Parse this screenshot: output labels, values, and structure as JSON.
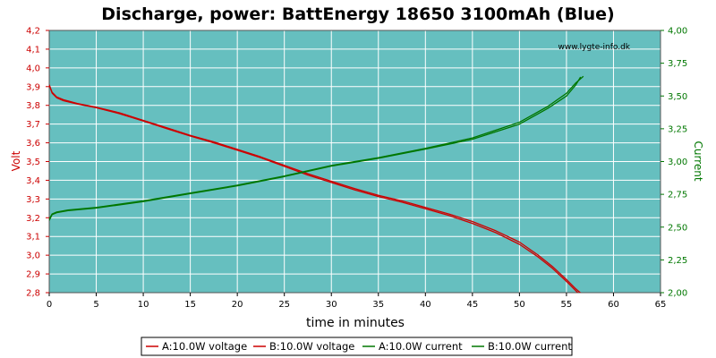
{
  "chart_data": {
    "type": "line",
    "title": "Discharge, power: BattEnergy 18650 3100mAh (Blue)",
    "xlabel": "time in minutes",
    "ylabel_left": "Volt",
    "ylabel_right": "Current",
    "watermark": "www.lygte-info.dk",
    "xlim": [
      0,
      65
    ],
    "ylim_left": [
      2.8,
      4.2
    ],
    "ylim_right": [
      2.0,
      4.0
    ],
    "x_ticks": [
      "0",
      "5",
      "10",
      "15",
      "20",
      "25",
      "30",
      "35",
      "40",
      "45",
      "50",
      "55",
      "60",
      "65"
    ],
    "y_left_ticks": [
      "2,8",
      "2,9",
      "3,0",
      "3,1",
      "3,2",
      "3,3",
      "3,4",
      "3,5",
      "3,6",
      "3,7",
      "3,8",
      "3,9",
      "4,0",
      "4,1",
      "4,2"
    ],
    "y_right_ticks": [
      "2,00",
      "2,25",
      "2,50",
      "2,75",
      "3,00",
      "3,25",
      "3,50",
      "3,75",
      "4,00"
    ],
    "grid": true,
    "legend_position": "bottom",
    "colors": {
      "plot_bg": "#66bfbf",
      "grid": "#ffffff",
      "voltage": "#cc0000",
      "current": "#007700",
      "left_axis": "#cc0000",
      "right_axis": "#007700"
    },
    "series": [
      {
        "name": "A:10.0W voltage",
        "axis": "left",
        "color": "#cc0000",
        "x": [
          0,
          0.3,
          0.8,
          1.5,
          3,
          5,
          7.5,
          10,
          12.5,
          15,
          17.5,
          20,
          22.5,
          25,
          27.5,
          30,
          32.5,
          35,
          37.5,
          40,
          42.5,
          45,
          47.5,
          50,
          52,
          53.5,
          55,
          56,
          56.8
        ],
        "y": [
          3.91,
          3.87,
          3.845,
          3.83,
          3.81,
          3.79,
          3.76,
          3.72,
          3.68,
          3.64,
          3.605,
          3.565,
          3.525,
          3.48,
          3.435,
          3.395,
          3.355,
          3.32,
          3.29,
          3.255,
          3.22,
          3.18,
          3.13,
          3.07,
          3.0,
          2.94,
          2.87,
          2.82,
          2.785
        ]
      },
      {
        "name": "B:10.0W voltage",
        "axis": "left",
        "color": "#cc0000",
        "x": [
          0,
          0.3,
          0.8,
          1.5,
          3,
          5,
          7.5,
          10,
          12.5,
          15,
          17.5,
          20,
          22.5,
          25,
          27.5,
          30,
          32.5,
          35,
          37.5,
          40,
          42.5,
          45,
          47.5,
          50,
          52,
          53.5,
          55,
          56,
          56.5
        ],
        "y": [
          3.91,
          3.865,
          3.84,
          3.825,
          3.807,
          3.787,
          3.755,
          3.716,
          3.676,
          3.636,
          3.6,
          3.56,
          3.52,
          3.474,
          3.428,
          3.388,
          3.348,
          3.313,
          3.283,
          3.248,
          3.212,
          3.17,
          3.12,
          3.058,
          2.99,
          2.93,
          2.86,
          2.81,
          2.785
        ]
      },
      {
        "name": "A:10.0W current",
        "axis": "right",
        "color": "#007700",
        "x": [
          0,
          0.3,
          0.8,
          2,
          5,
          10,
          15,
          20,
          25,
          30,
          35,
          40,
          45,
          50,
          53,
          55,
          56,
          56.8
        ],
        "y": [
          2.56,
          2.6,
          2.615,
          2.63,
          2.65,
          2.7,
          2.76,
          2.82,
          2.89,
          2.97,
          3.03,
          3.1,
          3.18,
          3.3,
          3.42,
          3.52,
          3.6,
          3.65
        ]
      },
      {
        "name": "B:10.0W current",
        "axis": "right",
        "color": "#007700",
        "x": [
          0,
          0.3,
          0.8,
          2,
          5,
          10,
          15,
          20,
          25,
          30,
          35,
          40,
          45,
          50,
          53,
          55,
          56,
          56.5
        ],
        "y": [
          2.55,
          2.595,
          2.61,
          2.625,
          2.645,
          2.695,
          2.755,
          2.815,
          2.885,
          2.965,
          3.025,
          3.095,
          3.17,
          3.285,
          3.405,
          3.5,
          3.585,
          3.645
        ]
      }
    ]
  }
}
